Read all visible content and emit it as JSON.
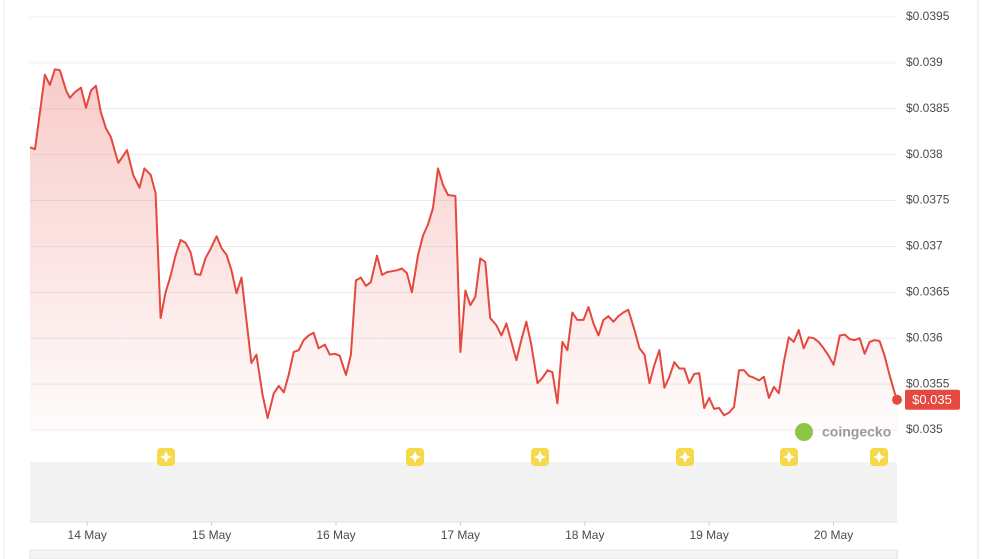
{
  "chart_data": {
    "type": "line",
    "x": [
      13.54,
      13.58,
      13.66,
      13.7,
      13.74,
      13.78,
      13.83,
      13.86,
      13.9,
      13.95,
      13.99,
      14.03,
      14.07,
      14.11,
      14.15,
      14.19,
      14.25,
      14.32,
      14.37,
      14.42,
      14.46,
      14.51,
      14.55,
      14.59,
      14.63,
      14.67,
      14.71,
      14.75,
      14.79,
      14.83,
      14.87,
      14.91,
      14.95,
      14.99,
      15.04,
      15.08,
      15.12,
      15.16,
      15.2,
      15.24,
      15.28,
      15.32,
      15.36,
      15.41,
      15.45,
      15.5,
      15.54,
      15.58,
      15.62,
      15.66,
      15.7,
      15.74,
      15.78,
      15.82,
      15.86,
      15.91,
      15.95,
      15.99,
      16.03,
      16.08,
      16.12,
      16.16,
      16.2,
      16.24,
      16.28,
      16.33,
      16.37,
      16.41,
      16.45,
      16.49,
      16.53,
      16.57,
      16.61,
      16.66,
      16.7,
      16.74,
      16.78,
      16.82,
      16.86,
      16.9,
      16.96,
      17.0,
      17.04,
      17.08,
      17.12,
      17.16,
      17.2,
      17.24,
      17.29,
      17.33,
      17.37,
      17.41,
      17.45,
      17.49,
      17.53,
      17.57,
      17.62,
      17.66,
      17.7,
      17.74,
      17.78,
      17.82,
      17.86,
      17.9,
      17.94,
      17.99,
      18.03,
      18.07,
      18.11,
      18.15,
      18.19,
      18.23,
      18.27,
      18.31,
      18.35,
      18.4,
      18.44,
      18.48,
      18.52,
      18.56,
      18.6,
      18.64,
      18.68,
      18.72,
      18.76,
      18.8,
      18.84,
      18.88,
      18.92,
      18.96,
      19.0,
      19.04,
      19.08,
      19.12,
      19.16,
      19.2,
      19.24,
      19.28,
      19.32,
      19.36,
      19.4,
      19.44,
      19.48,
      19.52,
      19.56,
      19.6,
      19.64,
      19.68,
      19.72,
      19.76,
      19.8,
      19.84,
      19.88,
      19.92,
      19.96,
      20.0,
      20.05,
      20.09,
      20.13,
      20.17,
      20.21,
      20.25,
      20.29,
      20.33,
      20.37,
      20.41,
      20.45,
      20.49,
      20.51
    ],
    "series": [
      {
        "color": "#e5483f",
        "values": [
          0.03808,
          0.03806,
          0.03887,
          0.03876,
          0.03893,
          0.03892,
          0.0387,
          0.03862,
          0.03868,
          0.03873,
          0.03851,
          0.0387,
          0.03875,
          0.03846,
          0.03829,
          0.03819,
          0.03791,
          0.03805,
          0.03778,
          0.03764,
          0.03785,
          0.03778,
          0.03758,
          0.03622,
          0.0365,
          0.03668,
          0.0369,
          0.03707,
          0.03704,
          0.03694,
          0.0367,
          0.03669,
          0.03687,
          0.03697,
          0.03711,
          0.03698,
          0.03691,
          0.03674,
          0.03649,
          0.03666,
          0.0362,
          0.03573,
          0.03582,
          0.03538,
          0.03513,
          0.0354,
          0.03548,
          0.03541,
          0.0356,
          0.03585,
          0.03587,
          0.03598,
          0.03603,
          0.03606,
          0.03589,
          0.03593,
          0.03582,
          0.03583,
          0.03581,
          0.0356,
          0.03582,
          0.03663,
          0.03666,
          0.03657,
          0.03661,
          0.0369,
          0.03669,
          0.03672,
          0.03673,
          0.03674,
          0.03676,
          0.03671,
          0.0365,
          0.03691,
          0.03712,
          0.03724,
          0.03742,
          0.03785,
          0.03767,
          0.03756,
          0.03755,
          0.03585,
          0.03652,
          0.03636,
          0.03645,
          0.03687,
          0.03683,
          0.03622,
          0.03614,
          0.03603,
          0.03616,
          0.03596,
          0.03576,
          0.03598,
          0.03618,
          0.03593,
          0.03551,
          0.03557,
          0.03565,
          0.03563,
          0.03529,
          0.03596,
          0.03587,
          0.03628,
          0.0362,
          0.0362,
          0.03634,
          0.03616,
          0.03603,
          0.0362,
          0.03624,
          0.03618,
          0.03624,
          0.03628,
          0.03631,
          0.03609,
          0.03589,
          0.03582,
          0.03551,
          0.03571,
          0.03587,
          0.03546,
          0.03558,
          0.03574,
          0.03567,
          0.03567,
          0.03551,
          0.03561,
          0.03562,
          0.03524,
          0.03535,
          0.03523,
          0.03524,
          0.03516,
          0.03519,
          0.03525,
          0.03565,
          0.03565,
          0.03559,
          0.03557,
          0.03554,
          0.03558,
          0.03535,
          0.03547,
          0.0354,
          0.03574,
          0.03601,
          0.03596,
          0.03609,
          0.03589,
          0.03601,
          0.036,
          0.03596,
          0.03589,
          0.03581,
          0.03571,
          0.03603,
          0.03604,
          0.03599,
          0.03598,
          0.036,
          0.03583,
          0.03596,
          0.03598,
          0.03597,
          0.03581,
          0.0356,
          0.03541,
          0.03533
        ]
      }
    ],
    "last_value_label": "$0.035",
    "xlim": [
      13.54,
      20.51
    ],
    "xticks": [
      {
        "value": 14,
        "label": "14 May"
      },
      {
        "value": 15,
        "label": "15 May"
      },
      {
        "value": 16,
        "label": "16 May"
      },
      {
        "value": 17,
        "label": "17 May"
      },
      {
        "value": 18,
        "label": "18 May"
      },
      {
        "value": 19,
        "label": "19 May"
      },
      {
        "value": 20,
        "label": "20 May"
      }
    ],
    "ylim": [
      0.035,
      0.0395
    ],
    "yticks": [
      {
        "value": 0.035,
        "label": "$0.035"
      },
      {
        "value": 0.0355,
        "label": "$0.0355"
      },
      {
        "value": 0.036,
        "label": "$0.036"
      },
      {
        "value": 0.0365,
        "label": "$0.0365"
      },
      {
        "value": 0.037,
        "label": "$0.037"
      },
      {
        "value": 0.0375,
        "label": "$0.0375"
      },
      {
        "value": 0.038,
        "label": "$0.038"
      },
      {
        "value": 0.0385,
        "label": "$0.0385"
      },
      {
        "value": 0.039,
        "label": "$0.039"
      },
      {
        "value": 0.0395,
        "label": "$0.0395"
      }
    ],
    "grid": true,
    "watermark": "coingecko"
  }
}
